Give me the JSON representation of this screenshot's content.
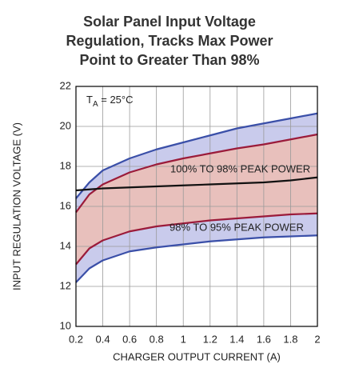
{
  "chart_data": {
    "type": "line",
    "title_lines": [
      "Solar Panel Input Voltage",
      "Regulation, Tracks Max Power",
      "Point to Greater Than 98%"
    ],
    "x_label": "CHARGER OUTPUT CURRENT (A)",
    "y_label": "INPUT REGULATION VOLTAGE (V)",
    "temperature_note": {
      "main": "T",
      "sub": "A",
      "rest": " = 25°C"
    },
    "annotations": [
      "100% TO 98% PEAK POWER",
      "98% TO 95% PEAK POWER"
    ],
    "x": [
      0.2,
      0.3,
      0.4,
      0.6,
      0.8,
      1.0,
      1.2,
      1.4,
      1.6,
      1.8,
      2.0
    ],
    "series": [
      {
        "color": "#3a4fa8",
        "values": [
          16.4,
          17.2,
          17.8,
          18.4,
          18.85,
          19.2,
          19.55,
          19.9,
          20.15,
          20.4,
          20.65
        ]
      },
      {
        "color": "#9b1b3a",
        "values": [
          15.7,
          16.6,
          17.1,
          17.7,
          18.1,
          18.4,
          18.65,
          18.9,
          19.1,
          19.35,
          19.6
        ]
      },
      {
        "color": "#111111",
        "values": [
          16.8,
          16.85,
          16.9,
          16.95,
          17.0,
          17.05,
          17.1,
          17.15,
          17.2,
          17.3,
          17.45
        ]
      },
      {
        "color": "#9b1b3a",
        "values": [
          13.1,
          13.9,
          14.3,
          14.75,
          15.0,
          15.15,
          15.3,
          15.4,
          15.5,
          15.6,
          15.65
        ]
      },
      {
        "color": "#3a4fa8",
        "values": [
          12.2,
          12.9,
          13.3,
          13.75,
          13.95,
          14.1,
          14.25,
          14.35,
          14.45,
          14.5,
          14.55
        ]
      }
    ],
    "bands": [
      {
        "series": [
          0,
          4
        ],
        "color": "#c9cbec"
      },
      {
        "series": [
          1,
          3
        ],
        "color": "#e8c0bc"
      }
    ],
    "xlim": [
      0.2,
      2
    ],
    "xticks": [
      0.2,
      0.4,
      0.6,
      0.8,
      1,
      1.2,
      1.4,
      1.6,
      1.8,
      2
    ],
    "ylim": [
      10,
      22
    ],
    "yticks": [
      10,
      12,
      14,
      16,
      18,
      20,
      22
    ],
    "grid": true
  }
}
